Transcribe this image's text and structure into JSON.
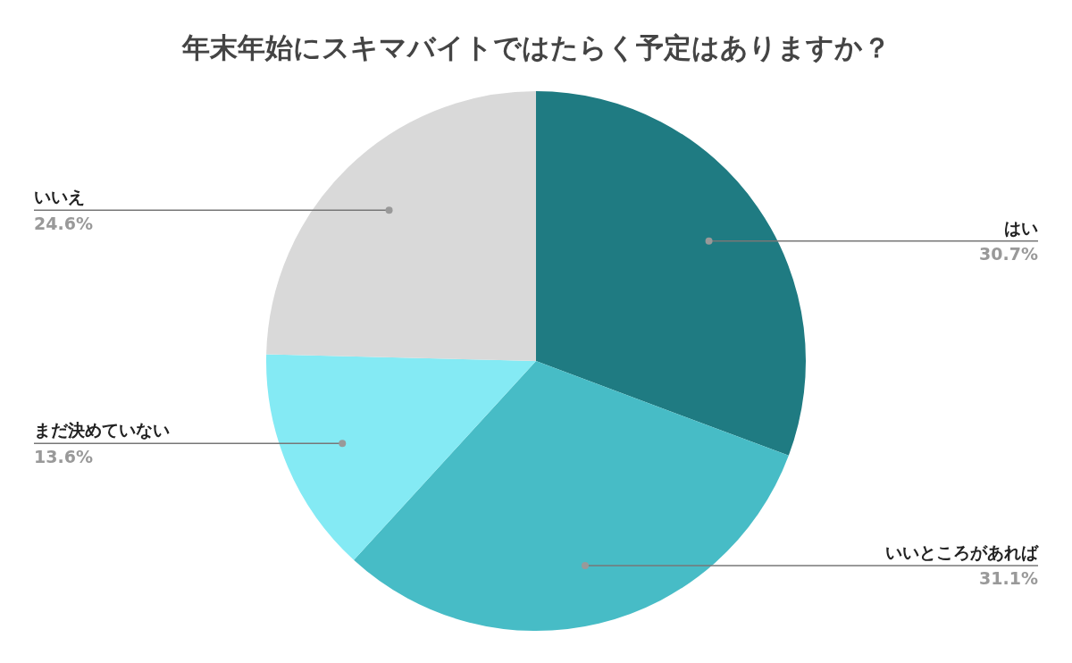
{
  "chart_data": {
    "type": "pie",
    "title": "年末年始にスキマバイトではたらく予定はありますか？",
    "categories": [
      "はい",
      "いいところがあれば",
      "まだ決めていない",
      "いいえ"
    ],
    "values": [
      30.7,
      31.1,
      13.6,
      24.6
    ],
    "colors": [
      "#1f7b82",
      "#47bcc6",
      "#84eaf4",
      "#d9d9d9"
    ],
    "value_labels": [
      "30.7%",
      "31.1%",
      "13.6%",
      "24.6%"
    ],
    "legend": false
  }
}
